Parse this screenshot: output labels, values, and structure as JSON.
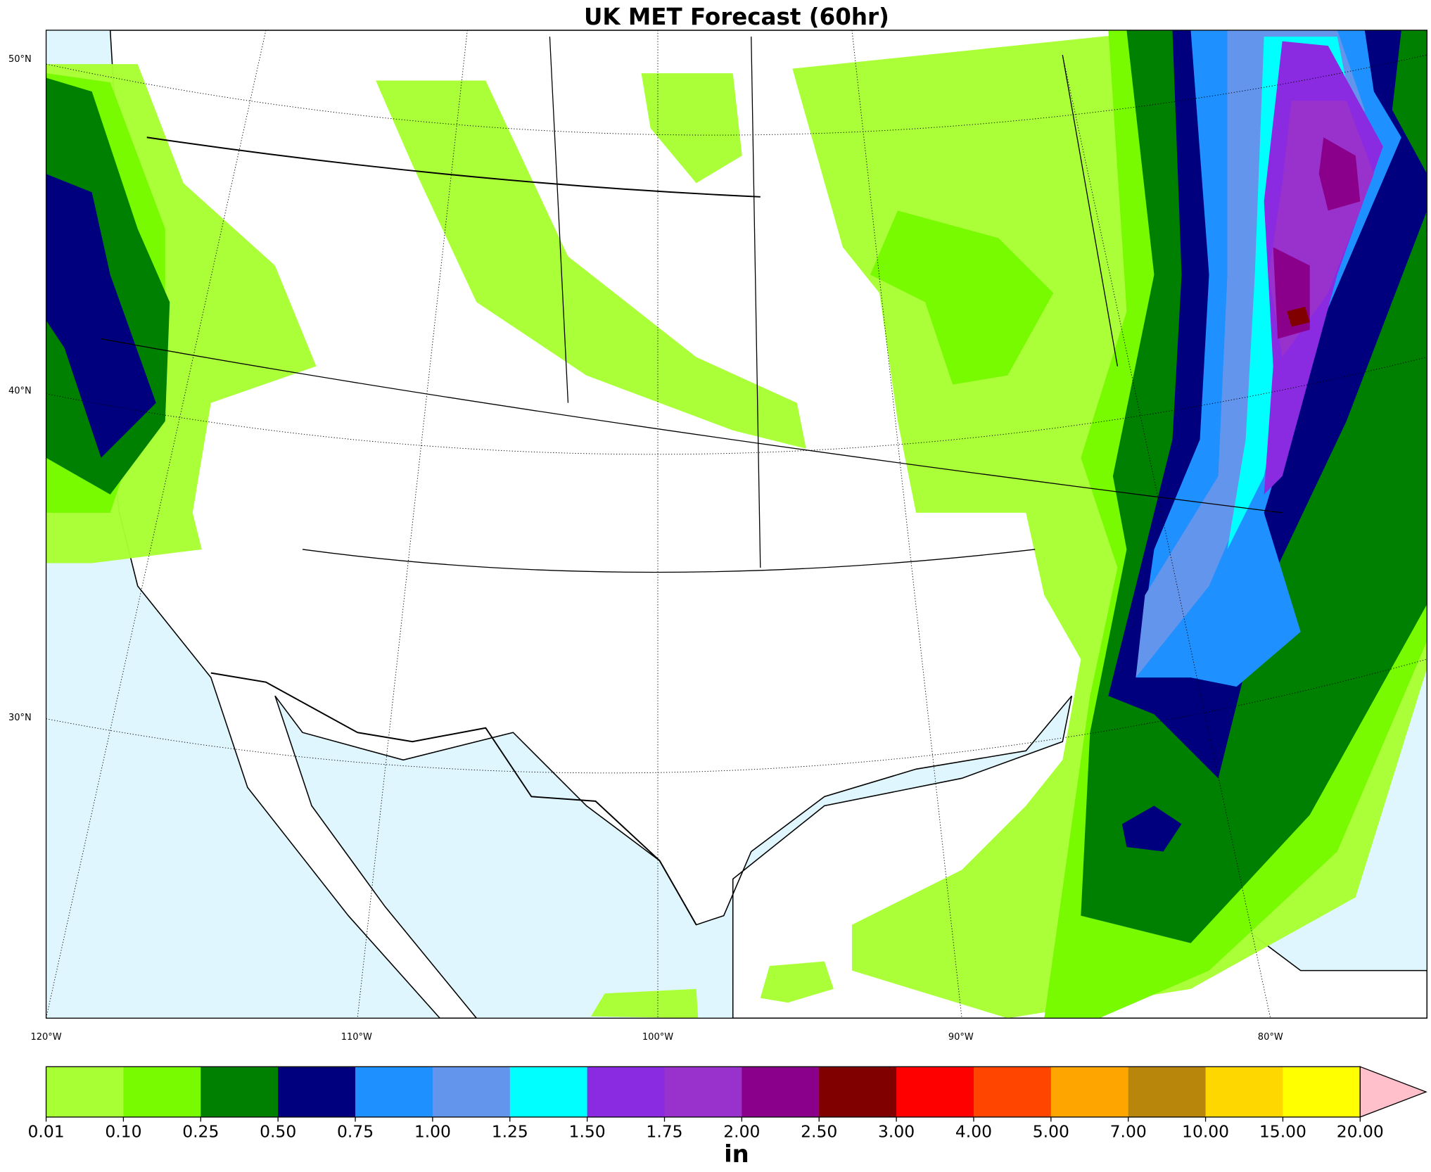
{
  "title": "UK MET Forecast (60hr)",
  "map": {
    "lat_labels": [
      "50°N",
      "40°N",
      "30°N"
    ],
    "lon_labels": [
      "120°W",
      "110°W",
      "100°W",
      "90°W",
      "80°W"
    ]
  },
  "colorbar": {
    "levels": [
      0.01,
      {
        "value": 0.1,
        "label": "0.10"
      },
      0.25,
      {
        "value": 0.5,
        "label": "0.50"
      },
      0.75,
      {
        "value": 1,
        "label": "1.00"
      },
      1.25,
      {
        "value": 1.5,
        "label": "1.50"
      },
      1.75,
      {
        "value": 2,
        "label": "2.00"
      },
      {
        "value": 2.5,
        "label": "2.50"
      },
      {
        "value": 3,
        "label": "3.00"
      },
      {
        "value": 4,
        "label": "4.00"
      },
      {
        "value": 5,
        "label": "5.00"
      },
      {
        "value": 7,
        "label": "7.00"
      },
      {
        "value": 10,
        "label": "10.00"
      },
      {
        "value": 15,
        "label": "15.00"
      },
      {
        "value": 20,
        "label": "20.00"
      }
    ],
    "colors": [
      "#a8ff33",
      "#78fa00",
      "#008000",
      "#00007f",
      "#1e90ff",
      "#6495ed",
      "#00ffff",
      "#8a2be2",
      "#9932cc",
      "#8b008b",
      "#800000",
      "#ff0000",
      "#ff4500",
      "#ffa500",
      "#b8860b",
      "#ffd700",
      "#ffff00"
    ],
    "extend_color": "#ffc0cb",
    "label": "in"
  }
}
